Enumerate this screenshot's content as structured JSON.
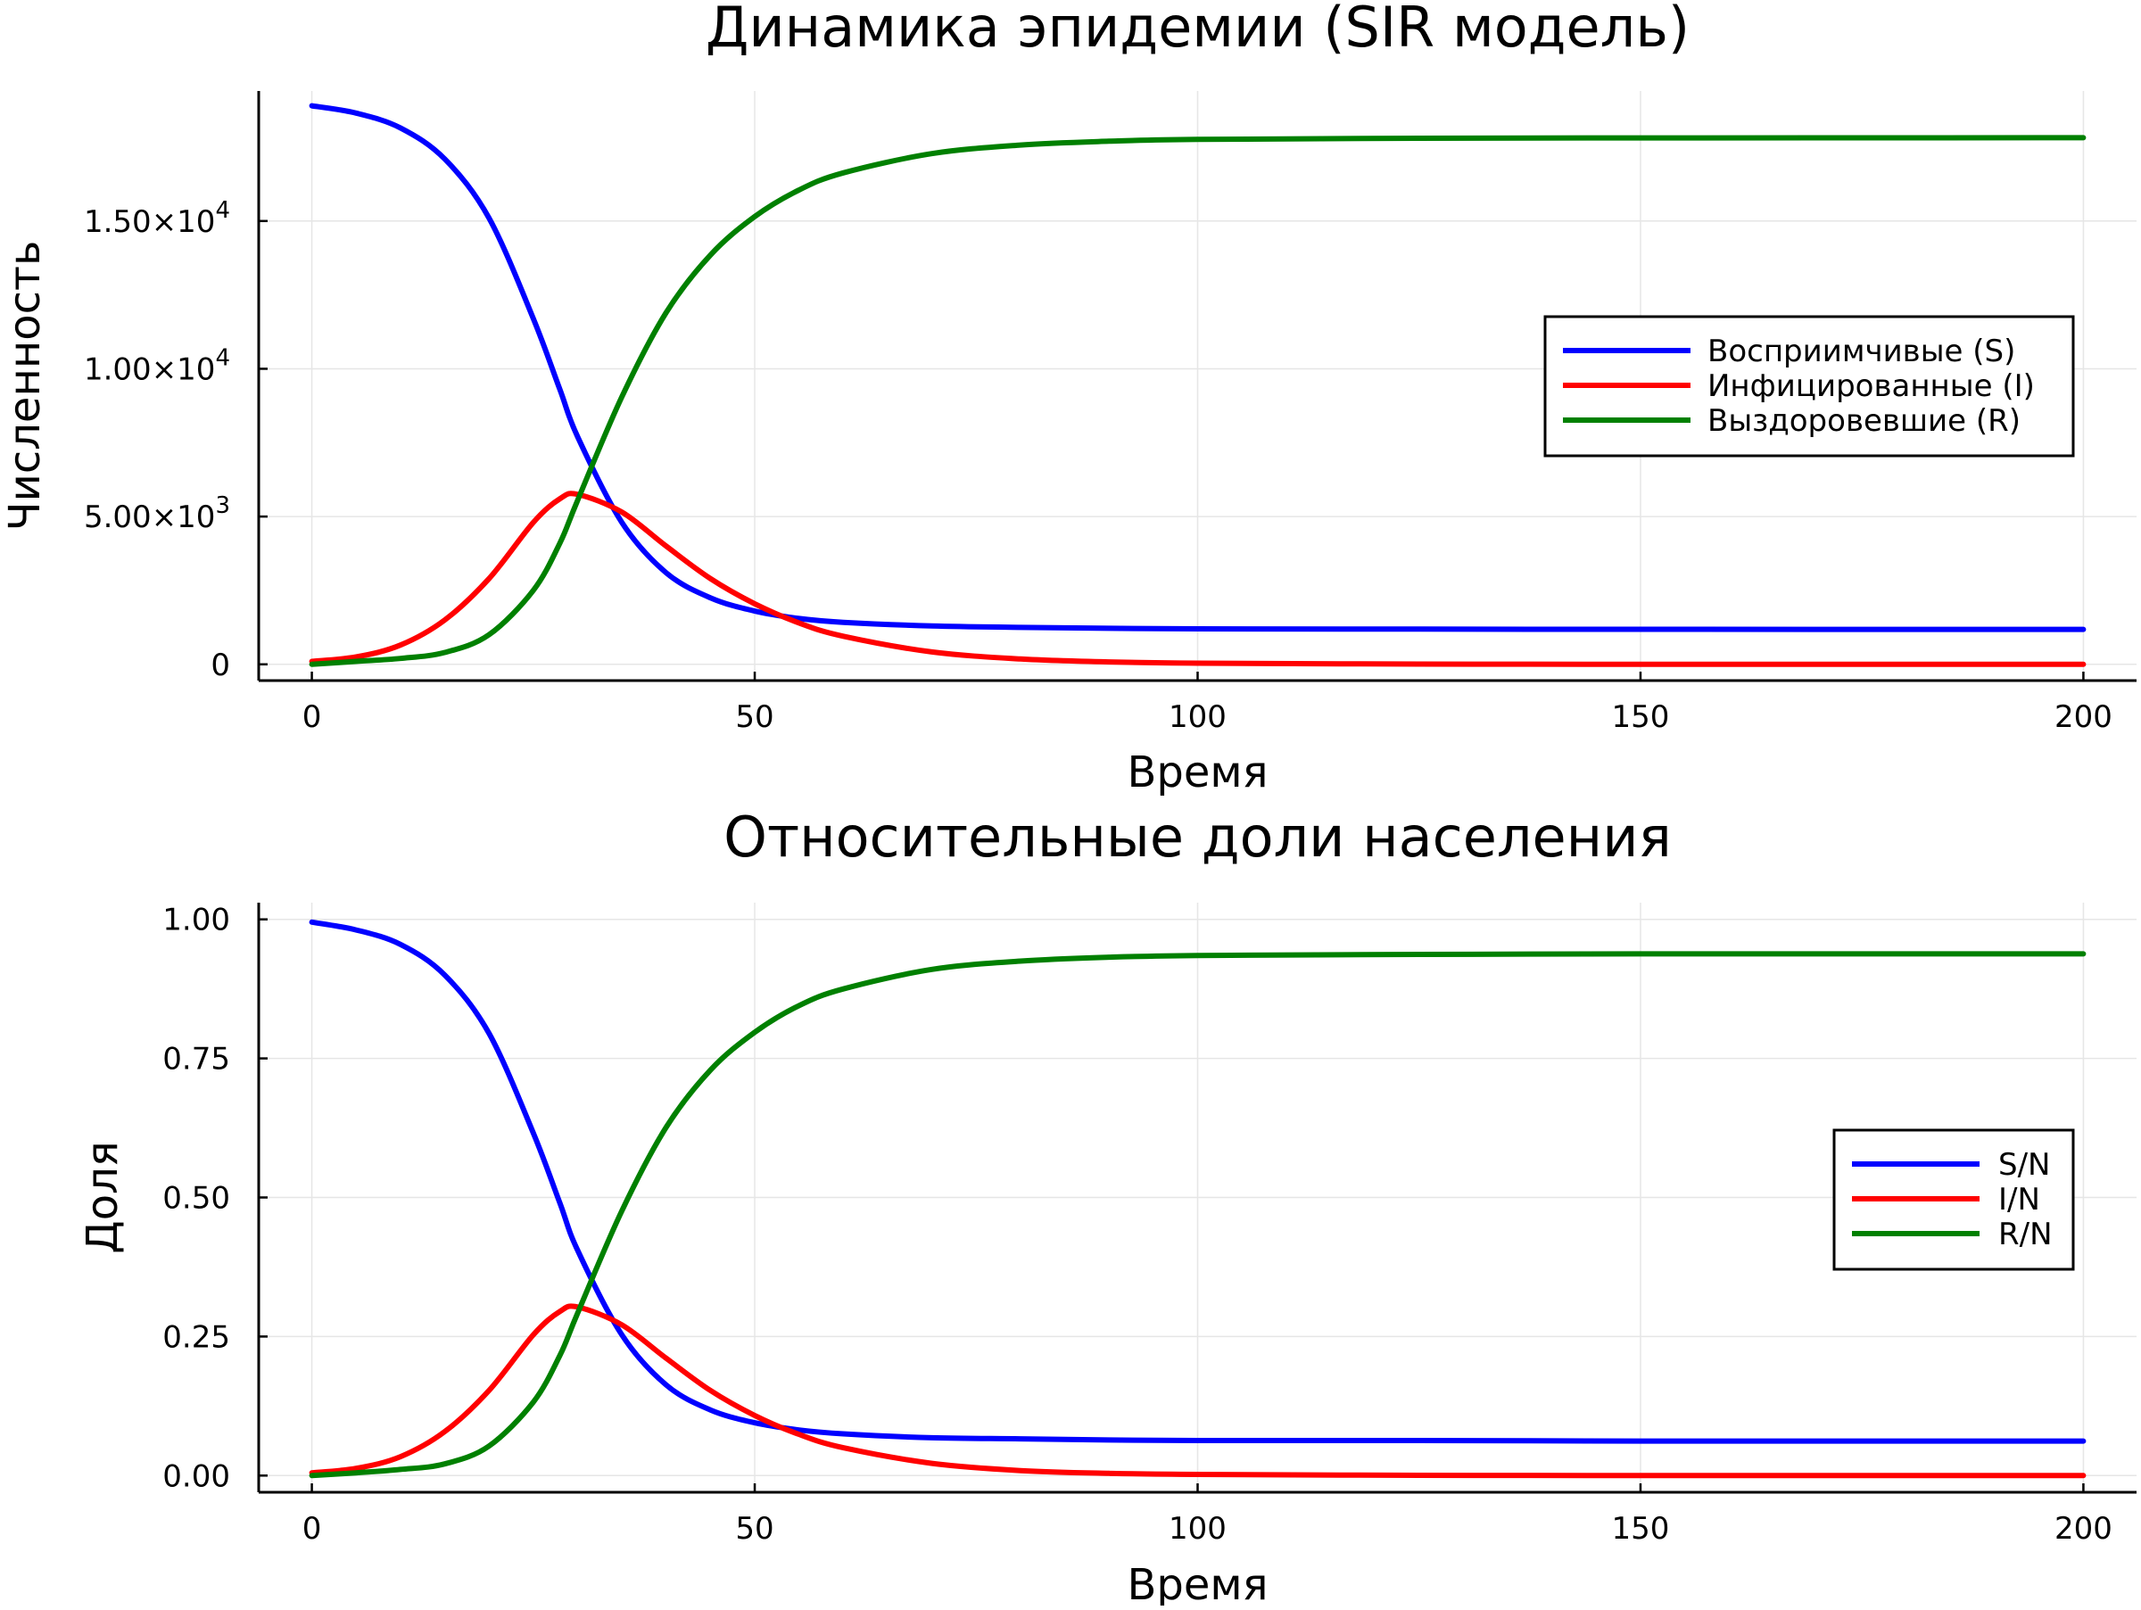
{
  "chart_data": [
    {
      "type": "line",
      "title": "Динамика эпидемии (SIR модель)",
      "xlabel": "Время",
      "ylabel": "Численность",
      "xlim": [
        -6,
        206
      ],
      "ylim": [
        -550,
        19400
      ],
      "x_ticks": [
        {
          "value": 0,
          "label": "0"
        },
        {
          "value": 50,
          "label": "50"
        },
        {
          "value": 100,
          "label": "100"
        },
        {
          "value": 150,
          "label": "150"
        },
        {
          "value": 200,
          "label": "200"
        }
      ],
      "y_ticks": [
        {
          "value": 0,
          "label": "0",
          "exp": ""
        },
        {
          "value": 5000,
          "label": "5.00×10",
          "exp": "3"
        },
        {
          "value": 10000,
          "label": "1.00×10",
          "exp": "4"
        },
        {
          "value": 15000,
          "label": "1.50×10",
          "exp": "4"
        }
      ],
      "grid": true,
      "legend_position": "right",
      "x": [
        0,
        5,
        10,
        15,
        20,
        25,
        28,
        30,
        35,
        40,
        45,
        50,
        55,
        60,
        70,
        80,
        90,
        100,
        125,
        150,
        175,
        200
      ],
      "series": [
        {
          "name": "Восприимчивые (S)",
          "color": "#0000ff",
          "values": [
            18900,
            18650,
            18150,
            17100,
            15100,
            11700,
            9300,
            7700,
            4800,
            3100,
            2250,
            1800,
            1550,
            1420,
            1300,
            1250,
            1220,
            1200,
            1190,
            1185,
            1183,
            1182
          ]
        },
        {
          "name": "Инфицированные (I)",
          "color": "#ff0000",
          "values": [
            100,
            250,
            650,
            1500,
            2900,
            4800,
            5600,
            5750,
            5150,
            4000,
            2900,
            2050,
            1400,
            950,
            420,
            180,
            80,
            40,
            8,
            2,
            1,
            0
          ]
        },
        {
          "name": "Выздоровевшие (R)",
          "color": "#008000",
          "values": [
            0,
            100,
            200,
            400,
            1000,
            2500,
            4100,
            5550,
            9050,
            11900,
            13850,
            15150,
            16050,
            16630,
            17280,
            17570,
            17700,
            17760,
            17800,
            17812,
            17815,
            17818
          ]
        }
      ]
    },
    {
      "type": "line",
      "title": "Относительные доли населения",
      "xlabel": "Время",
      "ylabel": "Доля",
      "xlim": [
        -6,
        206
      ],
      "ylim": [
        -0.03,
        1.03
      ],
      "x_ticks": [
        {
          "value": 0,
          "label": "0"
        },
        {
          "value": 50,
          "label": "50"
        },
        {
          "value": 100,
          "label": "100"
        },
        {
          "value": 150,
          "label": "150"
        },
        {
          "value": 200,
          "label": "200"
        }
      ],
      "y_ticks": [
        {
          "value": 0,
          "label": "0.00",
          "exp": ""
        },
        {
          "value": 0.25,
          "label": "0.25",
          "exp": ""
        },
        {
          "value": 0.5,
          "label": "0.50",
          "exp": ""
        },
        {
          "value": 0.75,
          "label": "0.75",
          "exp": ""
        },
        {
          "value": 1.0,
          "label": "1.00",
          "exp": ""
        }
      ],
      "grid": true,
      "legend_position": "right",
      "x": [
        0,
        5,
        10,
        15,
        20,
        25,
        28,
        30,
        35,
        40,
        45,
        50,
        55,
        60,
        70,
        80,
        90,
        100,
        125,
        150,
        175,
        200
      ],
      "series": [
        {
          "name": "S/N",
          "color": "#0000ff",
          "values": [
            0.995,
            0.981,
            0.955,
            0.9,
            0.795,
            0.616,
            0.49,
            0.405,
            0.253,
            0.163,
            0.118,
            0.095,
            0.082,
            0.075,
            0.068,
            0.066,
            0.064,
            0.063,
            0.063,
            0.062,
            0.062,
            0.062
          ]
        },
        {
          "name": "I/N",
          "color": "#ff0000",
          "values": [
            0.005,
            0.013,
            0.034,
            0.079,
            0.153,
            0.253,
            0.295,
            0.303,
            0.271,
            0.211,
            0.153,
            0.108,
            0.074,
            0.05,
            0.022,
            0.009,
            0.004,
            0.002,
            0.0004,
            0.0001,
            0.0,
            0.0
          ]
        },
        {
          "name": "R/N",
          "color": "#008000",
          "values": [
            0.0,
            0.005,
            0.011,
            0.021,
            0.053,
            0.132,
            0.216,
            0.292,
            0.476,
            0.626,
            0.729,
            0.797,
            0.845,
            0.875,
            0.91,
            0.925,
            0.932,
            0.935,
            0.937,
            0.938,
            0.938,
            0.938
          ]
        }
      ]
    }
  ]
}
